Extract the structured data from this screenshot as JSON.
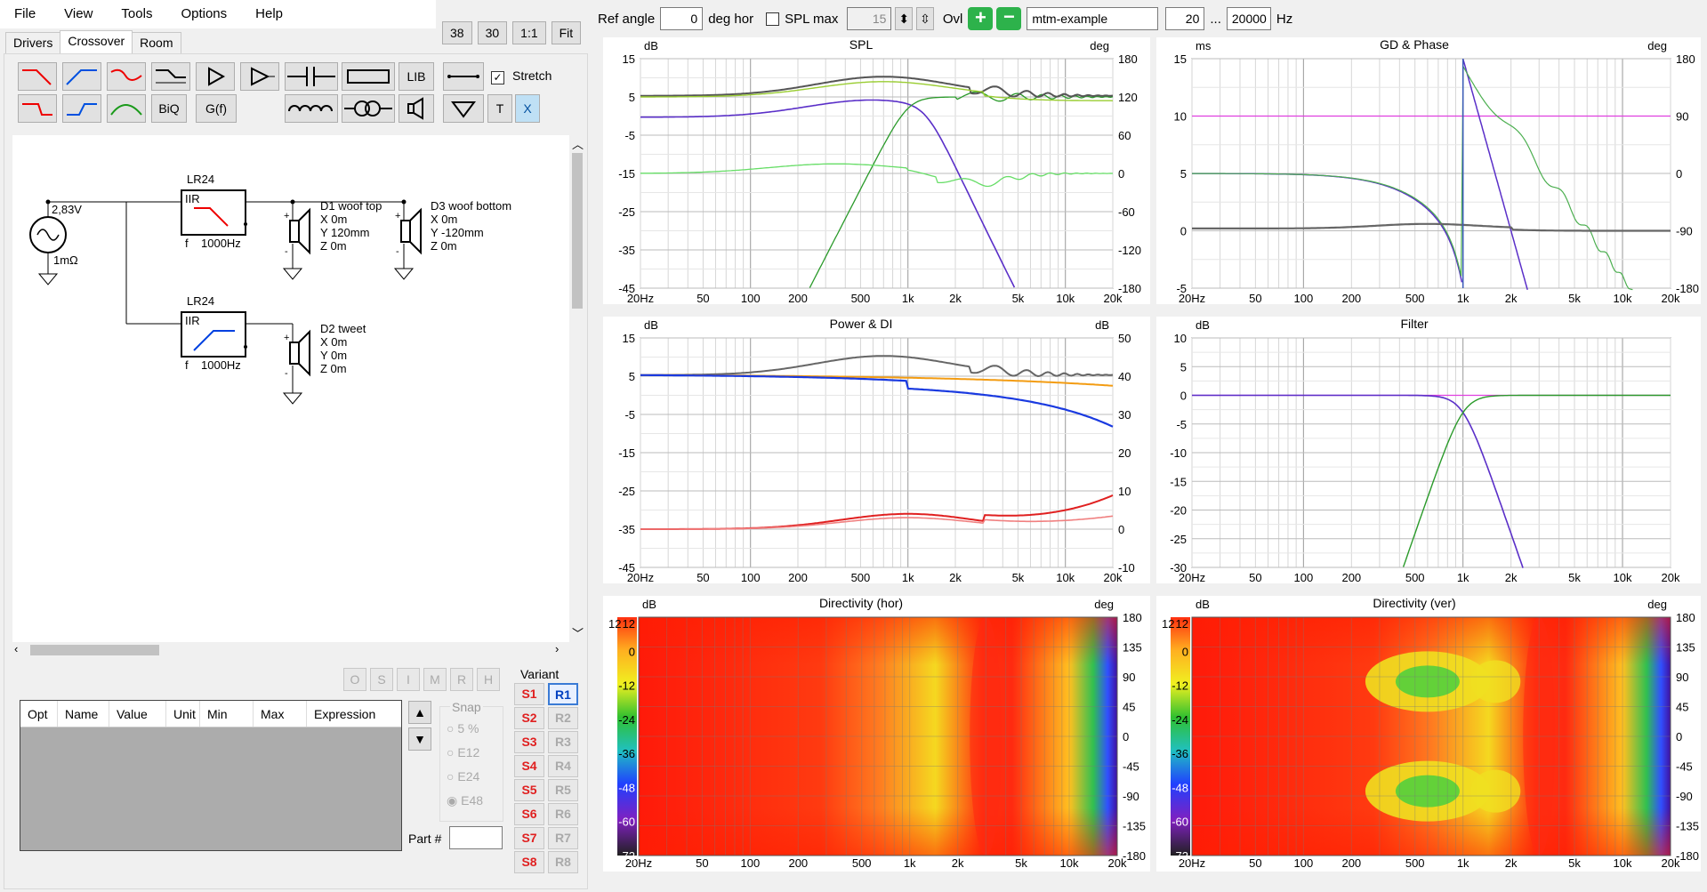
{
  "menu": [
    "File",
    "View",
    "Tools",
    "Options",
    "Help"
  ],
  "tabs": [
    "Drivers",
    "Crossover",
    "Room"
  ],
  "view_buttons": [
    "38",
    "30",
    "1:1",
    "Fit"
  ],
  "toolbar": {
    "lib": "LIB",
    "stretch": "Stretch",
    "biq": "BiQ",
    "gf": "G(f)",
    "t": "T",
    "x": "X"
  },
  "schematic": {
    "source_voltage": "2,83V",
    "source_impedance": "1mΩ",
    "filter1": {
      "title": "LR24",
      "type": "IIR",
      "freq_label": "f",
      "freq": "1000Hz"
    },
    "filter2": {
      "title": "LR24",
      "type": "IIR",
      "freq_label": "f",
      "freq": "1000Hz"
    },
    "driver1": {
      "name": "D1 woof top",
      "x": "X 0m",
      "y": "Y 120mm",
      "z": "Z 0m"
    },
    "driver2": {
      "name": "D2 tweet",
      "x": "X 0m",
      "y": "Y 0m",
      "z": "Z 0m"
    },
    "driver3": {
      "name": "D3 woof bottom",
      "x": "X 0m",
      "y": "Y -120mm",
      "z": "Z 0m"
    }
  },
  "opt_buttons": [
    "O",
    "S",
    "I",
    "M",
    "R",
    "H"
  ],
  "param_table": {
    "headers": [
      "Opt",
      "Name",
      "Value",
      "Unit",
      "Min",
      "Max",
      "Expression"
    ]
  },
  "snap": {
    "label": "Snap",
    "options": [
      "5 %",
      "E12",
      "E24",
      "E48"
    ],
    "selected": "E48"
  },
  "part_label": "Part #",
  "variant": {
    "label": "Variant",
    "s": [
      "S1",
      "S2",
      "S3",
      "S4",
      "S5",
      "S6",
      "S7",
      "S8"
    ],
    "r": [
      "R1",
      "R2",
      "R3",
      "R4",
      "R5",
      "R6",
      "R7",
      "R8"
    ],
    "active": "R1"
  },
  "top_controls": {
    "ref_angle_label": "Ref angle",
    "ref_angle": "0",
    "deg_hor": "deg hor",
    "spl_max_label": "SPL max",
    "spl_max": "15",
    "ovl": "Ovl",
    "project": "mtm-example",
    "fmin": "20",
    "ellipsis": "...",
    "fmax": "20000",
    "hz": "Hz"
  },
  "freq_ticks": [
    "20Hz",
    "50",
    "100",
    "200",
    "500",
    "1k",
    "2k",
    "5k",
    "10k",
    "20k"
  ],
  "charts": {
    "spl": {
      "title": "SPL",
      "left_unit": "dB",
      "right_unit": "deg",
      "left_ticks": [
        "15",
        "5",
        "-5",
        "-15",
        "-25",
        "-35",
        "-45"
      ],
      "right_ticks": [
        "180",
        "120",
        "60",
        "0",
        "-60",
        "-120",
        "-180"
      ]
    },
    "gd": {
      "title": "GD & Phase",
      "left_unit": "ms",
      "right_unit": "deg",
      "left_ticks": [
        "15",
        "10",
        "5",
        "0",
        "-5"
      ],
      "right_ticks": [
        "180",
        "90",
        "0",
        "-90",
        "-180"
      ]
    },
    "power": {
      "title": "Power & DI",
      "left_unit": "dB",
      "right_unit": "dB",
      "left_ticks": [
        "15",
        "5",
        "-5",
        "-15",
        "-25",
        "-35",
        "-45"
      ],
      "right_ticks": [
        "50",
        "40",
        "30",
        "20",
        "10",
        "0",
        "-10"
      ]
    },
    "filter": {
      "title": "Filter",
      "left_unit": "dB",
      "left_ticks": [
        "10",
        "5",
        "0",
        "-5",
        "-10",
        "-15",
        "-20",
        "-25",
        "-30"
      ]
    },
    "dirh": {
      "title": "Directivity (hor)",
      "left_unit": "dB",
      "right_unit": "deg",
      "scale": [
        "12",
        "0",
        "-12",
        "-24",
        "-36",
        "-48",
        "-60",
        "-72"
      ],
      "right_ticks": [
        "180",
        "135",
        "90",
        "45",
        "0",
        "-45",
        "-90",
        "-135",
        "-180"
      ]
    },
    "dirv": {
      "title": "Directivity (ver)",
      "left_unit": "dB",
      "right_unit": "deg",
      "scale": [
        "12",
        "0",
        "-12",
        "-24",
        "-36",
        "-48",
        "-60",
        "-72"
      ],
      "right_ticks": [
        "180",
        "135",
        "90",
        "45",
        "0",
        "-45",
        "-90",
        "-135",
        "-180"
      ]
    }
  }
}
